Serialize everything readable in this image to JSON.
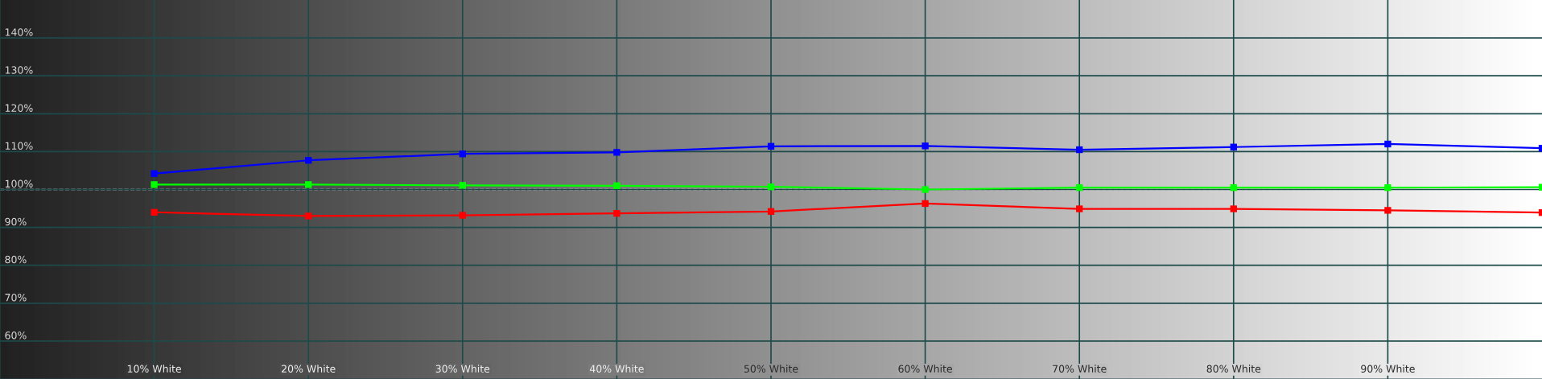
{
  "chart_data": {
    "type": "line",
    "x": [
      10,
      20,
      30,
      40,
      50,
      60,
      70,
      80,
      90,
      100
    ],
    "series": [
      {
        "color": "#0000ff",
        "values": [
          104.2,
          107.7,
          109.4,
          109.8,
          111.4,
          111.5,
          110.5,
          111.2,
          112.0,
          110.9
        ]
      },
      {
        "color": "#00ff00",
        "values": [
          101.3,
          101.3,
          101.1,
          101.0,
          100.7,
          100.0,
          100.5,
          100.5,
          100.5,
          100.6
        ]
      },
      {
        "color": "#ff0000",
        "values": [
          94.0,
          93.0,
          93.2,
          93.7,
          94.2,
          96.3,
          94.9,
          94.9,
          94.5,
          93.9
        ]
      }
    ],
    "xlim": [
      0,
      100
    ],
    "xticks": [
      {
        "value": 10,
        "label": "10% White"
      },
      {
        "value": 20,
        "label": "20% White"
      },
      {
        "value": 30,
        "label": "30% White"
      },
      {
        "value": 40,
        "label": "40% White"
      },
      {
        "value": 50,
        "label": "50% White"
      },
      {
        "value": 60,
        "label": "60% White"
      },
      {
        "value": 70,
        "label": "70% White"
      },
      {
        "value": 80,
        "label": "80% White"
      },
      {
        "value": 90,
        "label": "90% White"
      }
    ],
    "ylim": [
      50,
      150
    ],
    "yticks": [
      {
        "value": 60,
        "label": "60%"
      },
      {
        "value": 70,
        "label": "70%"
      },
      {
        "value": 80,
        "label": "80%"
      },
      {
        "value": 90,
        "label": "90%"
      },
      {
        "value": 100,
        "label": "100%"
      },
      {
        "value": 110,
        "label": "110%"
      },
      {
        "value": 120,
        "label": "120%"
      },
      {
        "value": 130,
        "label": "130%"
      },
      {
        "value": 140,
        "label": "140%"
      }
    ],
    "ref_lines": [
      {
        "axis": "y",
        "value": 100,
        "color": "#ffffff",
        "line_style": "dashed"
      }
    ],
    "grid": true,
    "marker": "square",
    "line_style": "solid",
    "legend": false
  }
}
